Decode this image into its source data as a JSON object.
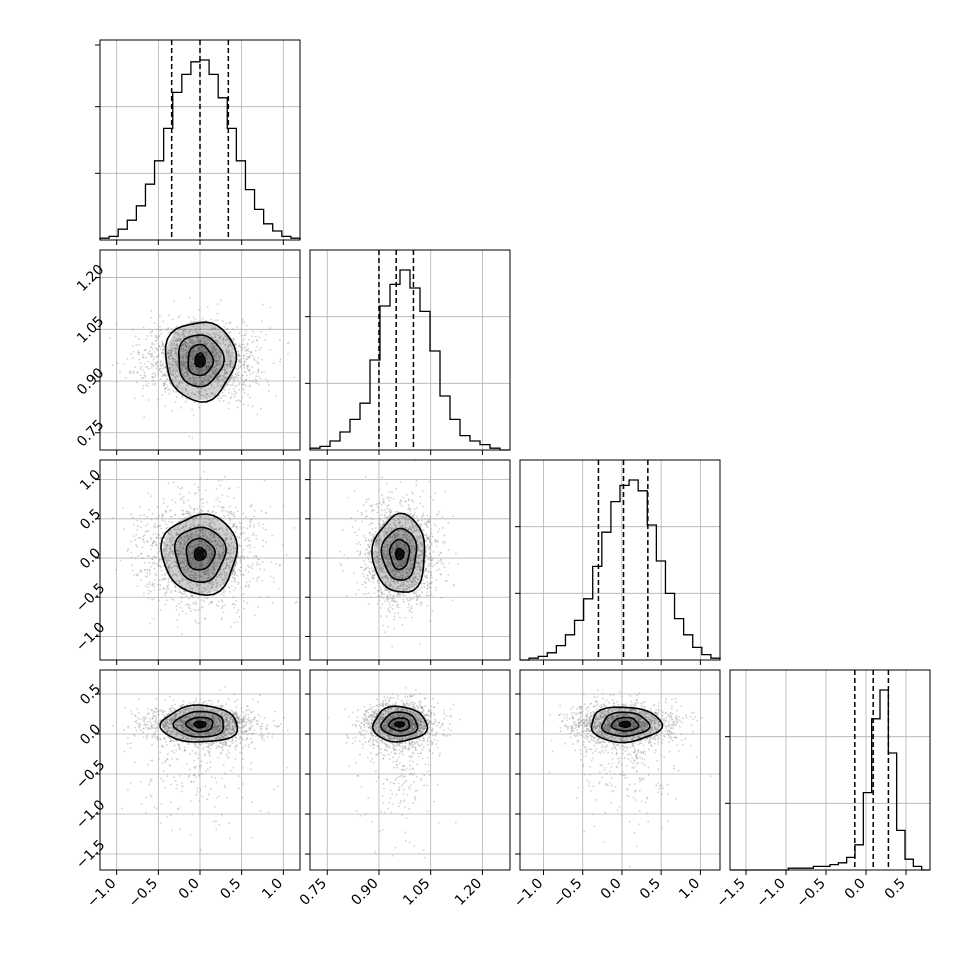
{
  "chart_data": {
    "type": "corner",
    "grid": true,
    "colors": {
      "line": "#000000",
      "grid": "#b0b0b0",
      "sample": "#9a9a9a",
      "density": "#000000"
    },
    "variables": [
      {
        "range": [
          -1.2,
          1.2
        ],
        "ticks": [
          -1.0,
          -0.5,
          0.0,
          0.5,
          1.0
        ],
        "tick_labels": [
          "−1.0",
          "−0.5",
          "0.0",
          "0.5",
          "1.0"
        ],
        "quantiles": [
          -0.34,
          0.0,
          0.34
        ],
        "hist": [
          0.01,
          0.02,
          0.06,
          0.11,
          0.19,
          0.31,
          0.44,
          0.62,
          0.82,
          0.92,
          0.99,
          1.0,
          0.92,
          0.79,
          0.62,
          0.44,
          0.28,
          0.17,
          0.09,
          0.05,
          0.02,
          0.01
        ]
      },
      {
        "range": [
          0.7,
          1.28
        ],
        "ticks": [
          0.75,
          0.9,
          1.05,
          1.2
        ],
        "tick_labels": [
          "0.75",
          "0.90",
          "1.05",
          "1.20"
        ],
        "quantiles": [
          0.9,
          0.95,
          1.0
        ],
        "hist": [
          0.01,
          0.02,
          0.05,
          0.1,
          0.17,
          0.26,
          0.5,
          0.8,
          0.92,
          1.0,
          0.9,
          0.77,
          0.55,
          0.3,
          0.17,
          0.08,
          0.05,
          0.03,
          0.01,
          0.0
        ]
      },
      {
        "range": [
          -1.3,
          1.25
        ],
        "ticks": [
          -1.0,
          -0.5,
          0.0,
          0.5,
          1.0
        ],
        "tick_labels": [
          "−1.0",
          "−0.5",
          "0.0",
          "0.5",
          "1.0"
        ],
        "quantiles": [
          -0.3,
          0.02,
          0.33
        ],
        "hist": [
          0.0,
          0.01,
          0.02,
          0.04,
          0.08,
          0.14,
          0.22,
          0.34,
          0.52,
          0.71,
          0.88,
          0.97,
          1.0,
          0.94,
          0.75,
          0.55,
          0.37,
          0.23,
          0.14,
          0.07,
          0.03,
          0.01
        ]
      },
      {
        "range": [
          -1.7,
          0.8
        ],
        "ticks": [
          -1.5,
          -1.0,
          -0.5,
          0.0,
          0.5
        ],
        "tick_labels": [
          "−1.5",
          "−1.0",
          "−0.5",
          "0.0",
          "0.5"
        ],
        "quantiles": [
          -0.14,
          0.09,
          0.28
        ],
        "hist": [
          0.0,
          0.0,
          0.0,
          0.0,
          0.0,
          0.0,
          0.0,
          0.01,
          0.01,
          0.01,
          0.02,
          0.02,
          0.03,
          0.04,
          0.07,
          0.14,
          0.43,
          0.84,
          1.0,
          0.65,
          0.22,
          0.06,
          0.02,
          0.0
        ]
      }
    ],
    "pairs": [
      {
        "row": 1,
        "col": 0,
        "center": [
          0.0,
          0.96
        ],
        "sigma": [
          0.34,
          0.055
        ],
        "tail": 0.0,
        "contours": [
          [
            0.06,
            0.02
          ],
          [
            0.15,
            0.045
          ],
          [
            0.27,
            0.075
          ],
          [
            0.42,
            0.115
          ]
        ]
      },
      {
        "row": 2,
        "col": 0,
        "center": [
          0.0,
          0.05
        ],
        "sigma": [
          0.34,
          0.33
        ],
        "tail": 0.0,
        "contours": [
          [
            0.07,
            0.08
          ],
          [
            0.17,
            0.2
          ],
          [
            0.3,
            0.35
          ],
          [
            0.45,
            0.51
          ]
        ]
      },
      {
        "row": 2,
        "col": 1,
        "center": [
          0.96,
          0.05
        ],
        "sigma": [
          0.055,
          0.33
        ],
        "tail": 0.0,
        "contours": [
          [
            0.012,
            0.07
          ],
          [
            0.028,
            0.19
          ],
          [
            0.05,
            0.33
          ],
          [
            0.076,
            0.5
          ]
        ]
      },
      {
        "row": 3,
        "col": 0,
        "center": [
          0.0,
          0.12
        ],
        "sigma": [
          0.34,
          0.13
        ],
        "tail": 0.12,
        "contours": [
          [
            0.07,
            0.04
          ],
          [
            0.16,
            0.09
          ],
          [
            0.3,
            0.16
          ],
          [
            0.46,
            0.23
          ]
        ]
      },
      {
        "row": 3,
        "col": 1,
        "center": [
          0.96,
          0.12
        ],
        "sigma": [
          0.055,
          0.13
        ],
        "tail": 0.12,
        "contours": [
          [
            0.014,
            0.03
          ],
          [
            0.03,
            0.08
          ],
          [
            0.052,
            0.15
          ],
          [
            0.078,
            0.22
          ]
        ]
      },
      {
        "row": 3,
        "col": 2,
        "center": [
          0.04,
          0.12
        ],
        "sigma": [
          0.33,
          0.13
        ],
        "tail": 0.12,
        "contours": [
          [
            0.07,
            0.035
          ],
          [
            0.17,
            0.085
          ],
          [
            0.3,
            0.15
          ],
          [
            0.45,
            0.22
          ]
        ]
      }
    ]
  }
}
